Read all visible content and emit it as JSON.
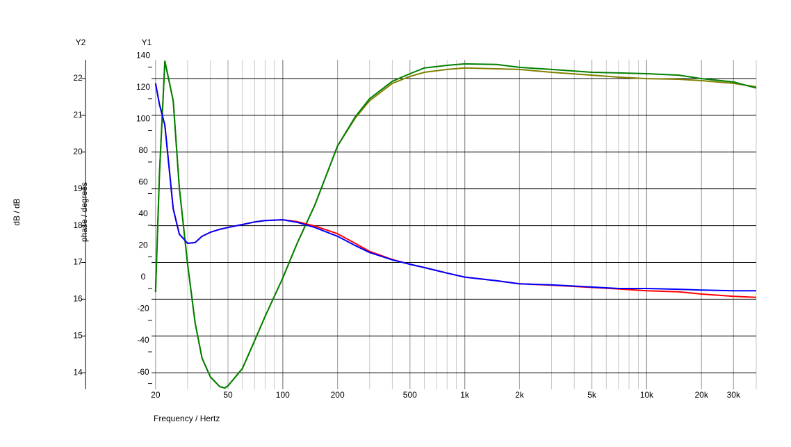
{
  "chart_data": {
    "type": "line",
    "y2_axis_name": "Y2",
    "y1_axis_name": "Y1",
    "y2label": "dB / dB",
    "ylabel": "phase / degrees",
    "xlabel": "Frequency / Hertz",
    "log_x": true,
    "grid": true,
    "minor_grid": true,
    "xlim": [
      19,
      40000
    ],
    "ylim": [
      -63.7,
      144.6
    ],
    "y2lim": [
      13.55,
      22.51
    ],
    "xticks": [
      20,
      50,
      100,
      200,
      500,
      {
        "value": 1000,
        "label": "1k"
      },
      {
        "value": 2000,
        "label": "2k"
      },
      {
        "value": 5000,
        "label": "5k"
      },
      {
        "value": 10000,
        "label": "10k"
      },
      {
        "value": 20000,
        "label": "20k"
      },
      {
        "value": 30000,
        "label": "30k"
      }
    ],
    "yticks": [
      140,
      120,
      100,
      80,
      60,
      40,
      20,
      0,
      -20,
      -40,
      -60
    ],
    "y2ticks": [
      22,
      21,
      20,
      19,
      18,
      17,
      16,
      15,
      14
    ],
    "x": [
      20,
      21,
      22.5,
      25,
      27,
      30,
      33,
      36,
      40,
      45,
      48,
      50,
      60,
      70,
      80,
      100,
      120,
      150,
      200,
      250,
      300,
      400,
      500,
      600,
      800,
      1000,
      1500,
      2000,
      3000,
      5000,
      7000,
      10000,
      15000,
      20000,
      30000,
      40000
    ],
    "series": [
      {
        "color": "#808000",
        "values": [
          -2.2,
          72.5,
          143.7,
          118.7,
          63.7,
          15.4,
          -22,
          -44,
          -55.8,
          -62,
          -62.9,
          -61.5,
          -50.6,
          -33,
          -17.6,
          6.6,
          28.6,
          52.7,
          90.1,
          107.7,
          118.7,
          129.7,
          134.1,
          136.7,
          138.5,
          139.4,
          138.9,
          138.5,
          136.7,
          134.9,
          133.6,
          132.7,
          132.3,
          131.4,
          129.7,
          127.5
        ]
      },
      {
        "color": "#008000",
        "values": [
          -2.2,
          72.5,
          143.7,
          118.7,
          63.7,
          15.4,
          -22,
          -44,
          -55.8,
          -62,
          -62.9,
          -61.5,
          -50.6,
          -33,
          -17.6,
          6.6,
          28.6,
          52.7,
          90.1,
          108.5,
          120,
          131,
          135.8,
          139.4,
          141.1,
          142,
          141.6,
          139.8,
          138.5,
          136.7,
          136.3,
          135.8,
          134.9,
          132.7,
          130.6,
          126.7
        ]
      },
      {
        "color": "#ff0000",
        "axis": "y2",
        "values": [
          21.87,
          21.3,
          20.73,
          18.46,
          17.77,
          17.52,
          17.54,
          17.71,
          17.82,
          17.9,
          17.93,
          17.95,
          18.03,
          18.1,
          18.14,
          18.16,
          18.11,
          17.99,
          17.78,
          17.52,
          17.3,
          17.08,
          16.95,
          16.86,
          16.71,
          16.6,
          16.5,
          16.42,
          16.38,
          16.32,
          16.28,
          16.23,
          16.2,
          16.14,
          16.08,
          16.05
        ]
      },
      {
        "color": "#0000ff",
        "axis": "y2",
        "values": [
          21.87,
          21.3,
          20.73,
          18.46,
          17.77,
          17.52,
          17.54,
          17.71,
          17.82,
          17.9,
          17.93,
          17.95,
          18.03,
          18.1,
          18.14,
          18.16,
          18.09,
          17.95,
          17.71,
          17.46,
          17.27,
          17.07,
          16.95,
          16.86,
          16.71,
          16.6,
          16.5,
          16.42,
          16.39,
          16.33,
          16.29,
          16.29,
          16.27,
          16.25,
          16.23,
          16.23
        ]
      }
    ]
  }
}
